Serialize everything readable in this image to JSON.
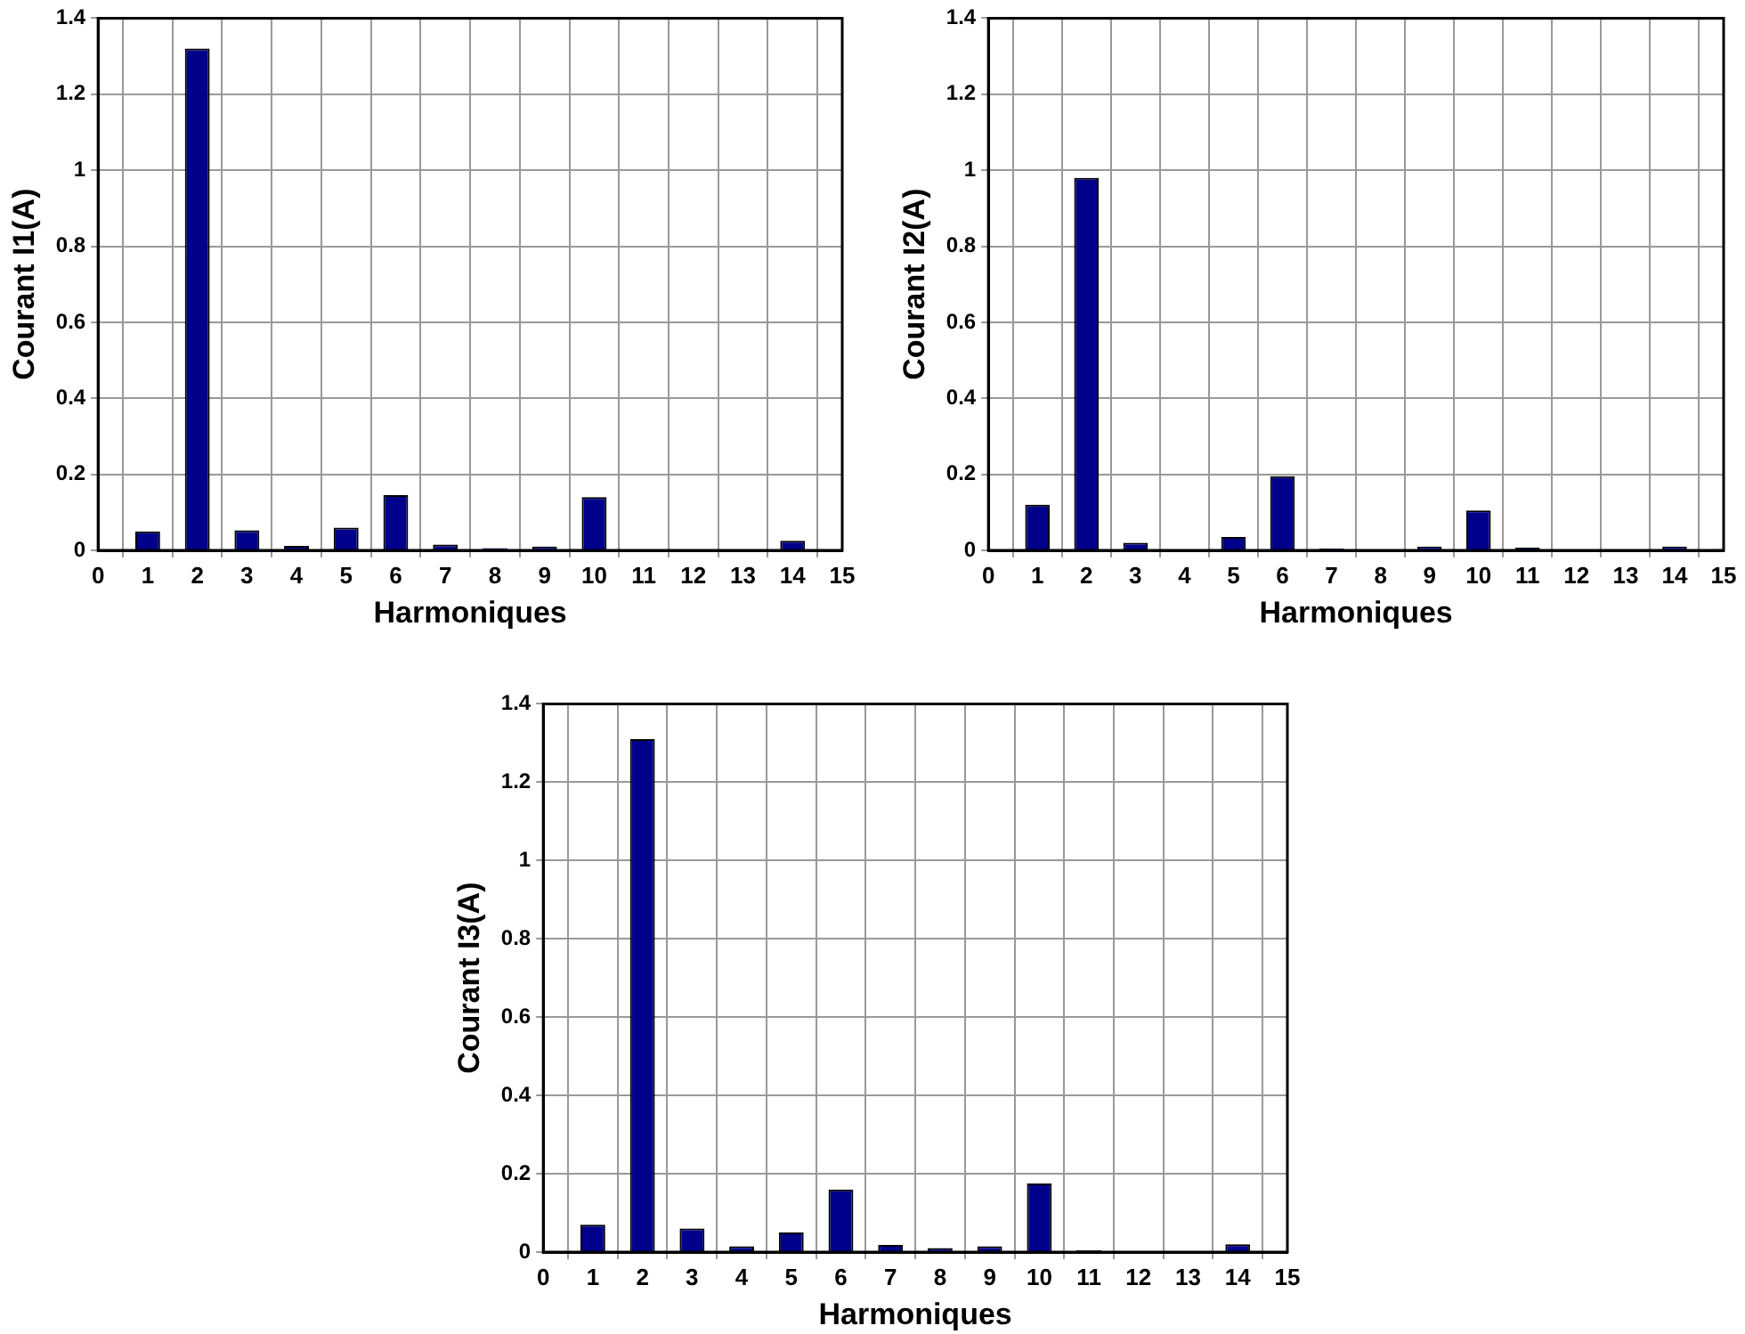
{
  "chart_data": [
    {
      "type": "bar",
      "xlabel": "Harmoniques",
      "ylabel": "Courant I1(A)",
      "x": [
        1,
        2,
        3,
        4,
        5,
        6,
        7,
        8,
        9,
        10,
        11,
        12,
        13,
        14,
        15
      ],
      "values": [
        0.05,
        1.32,
        0.053,
        0.012,
        0.06,
        0.145,
        0.015,
        0.006,
        0.01,
        0.14,
        0.002,
        0.002,
        0.002,
        0.025,
        0.002
      ],
      "color": "#00008b",
      "xlim": [
        0,
        15
      ],
      "xticks": [
        0,
        1,
        2,
        3,
        4,
        5,
        6,
        7,
        8,
        9,
        10,
        11,
        12,
        13,
        14,
        15
      ],
      "ylim": [
        0,
        1.4
      ],
      "yticks": [
        0,
        0.2,
        0.4,
        0.6,
        0.8,
        1,
        1.2,
        1.4
      ],
      "grid": true
    },
    {
      "type": "bar",
      "xlabel": "Harmoniques",
      "ylabel": "Courant I2(A)",
      "x": [
        1,
        2,
        3,
        4,
        5,
        6,
        7,
        8,
        9,
        10,
        11,
        12,
        13,
        14,
        15
      ],
      "values": [
        0.12,
        0.98,
        0.02,
        null,
        0.035,
        0.195,
        0.005,
        null,
        0.01,
        0.105,
        0.007,
        null,
        null,
        0.01,
        0.003
      ],
      "color": "#00008b",
      "xlim": [
        0,
        15
      ],
      "xticks": [
        0,
        1,
        2,
        3,
        4,
        5,
        6,
        7,
        8,
        9,
        10,
        11,
        12,
        13,
        14,
        15
      ],
      "ylim": [
        0,
        1.4
      ],
      "yticks": [
        0,
        0.2,
        0.4,
        0.6,
        0.8,
        1,
        1.2,
        1.4
      ],
      "grid": true
    },
    {
      "type": "bar",
      "xlabel": "Harmoniques",
      "ylabel": "Courant I3(A)",
      "x": [
        1,
        2,
        3,
        4,
        5,
        6,
        7,
        8,
        9,
        10,
        11,
        12,
        13,
        14,
        15
      ],
      "values": [
        0.07,
        1.31,
        0.06,
        0.015,
        0.05,
        0.16,
        0.018,
        0.01,
        0.015,
        0.175,
        0.005,
        null,
        null,
        0.02,
        0.002
      ],
      "color": "#00008b",
      "xlim": [
        0,
        15
      ],
      "xticks": [
        0,
        1,
        2,
        3,
        4,
        5,
        6,
        7,
        8,
        9,
        10,
        11,
        12,
        13,
        14,
        15
      ],
      "ylim": [
        0,
        1.4
      ],
      "yticks": [
        0,
        0.2,
        0.4,
        0.6,
        0.8,
        1,
        1.2,
        1.4
      ],
      "grid": true
    }
  ]
}
